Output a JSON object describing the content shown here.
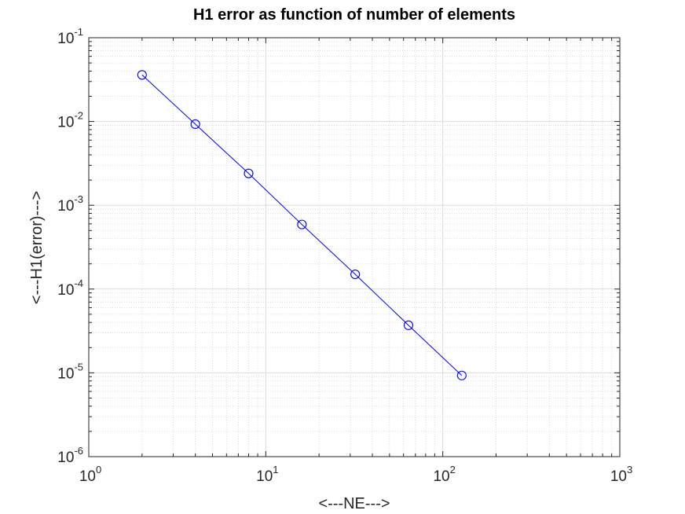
{
  "chart_data": {
    "type": "line",
    "title": "H1 error as function of number of elements",
    "xlabel": "<---NE--->",
    "ylabel": "<---H1(error)--->",
    "xscale": "log",
    "yscale": "log",
    "xlim": [
      1,
      1000
    ],
    "ylim": [
      1e-06,
      0.1
    ],
    "x_ticks": [
      {
        "base": "10",
        "exp": "0",
        "value": 1
      },
      {
        "base": "10",
        "exp": "1",
        "value": 10
      },
      {
        "base": "10",
        "exp": "2",
        "value": 100
      },
      {
        "base": "10",
        "exp": "3",
        "value": 1000
      }
    ],
    "y_ticks": [
      {
        "base": "10",
        "exp": "-6",
        "value": 1e-06
      },
      {
        "base": "10",
        "exp": "-5",
        "value": 1e-05
      },
      {
        "base": "10",
        "exp": "-4",
        "value": 0.0001
      },
      {
        "base": "10",
        "exp": "-3",
        "value": 0.001
      },
      {
        "base": "10",
        "exp": "-2",
        "value": 0.01
      },
      {
        "base": "10",
        "exp": "-1",
        "value": 0.1
      }
    ],
    "grid": true,
    "minor_grid": true,
    "series": [
      {
        "color": "#0000ff",
        "marker": "circle",
        "x": [
          2,
          4,
          8,
          16,
          32,
          64,
          128
        ],
        "y": [
          0.036,
          0.0093,
          0.0024,
          0.00059,
          0.00015,
          3.7e-05,
          9.3e-06
        ]
      }
    ]
  }
}
